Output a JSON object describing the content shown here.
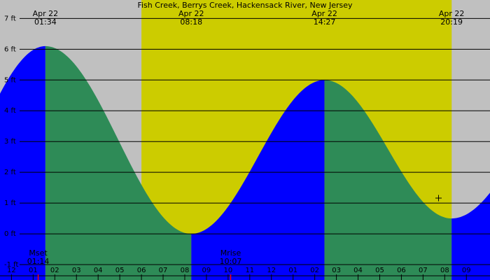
{
  "chart_data": {
    "type": "area",
    "title": "Fish Creek, Berrys Creek, Hackensack River, New Jersey",
    "y_unit": "ft",
    "ylim": [
      -1.5,
      7.6
    ],
    "y_ticks": [
      7,
      6,
      5,
      4,
      3,
      2,
      1,
      0,
      -1
    ],
    "y_tick_labels": [
      "7 ft",
      "6 ft",
      "5 ft",
      "4 ft",
      "3 ft",
      "2 ft",
      "1 ft",
      "0 ft",
      "-1 ft"
    ],
    "grid": true,
    "x_range_hours": [
      -0.53,
      22.09
    ],
    "x_tick_labels": [
      "11",
      "12",
      "01",
      "02",
      "03",
      "04",
      "05",
      "06",
      "07",
      "08",
      "09",
      "10",
      "11",
      "12",
      "01",
      "02",
      "03",
      "04",
      "05",
      "06",
      "07",
      "08",
      "09"
    ],
    "day_period": {
      "start_hour": 6.0,
      "end_hour": 20.32
    },
    "colors": {
      "night_background": "#c0c0c0",
      "day_background": "#cccc00",
      "rising_tide": "#0000ff",
      "falling_tide": "#2e8b57",
      "grid_line": "#000000"
    },
    "extremes": [
      {
        "date": "Apr 22",
        "time": "01:34",
        "hour": 1.567,
        "height_ft": 6.1,
        "type": "high"
      },
      {
        "date": "Apr 22",
        "time": "08:18",
        "hour": 8.3,
        "height_ft": 0.0,
        "type": "low"
      },
      {
        "date": "Apr 22",
        "time": "14:27",
        "hour": 14.45,
        "height_ft": 5.0,
        "type": "high"
      },
      {
        "date": "Apr 22",
        "time": "20:19",
        "hour": 20.317,
        "height_ft": 0.5,
        "type": "low"
      }
    ],
    "moon_events": [
      {
        "label": "Mset",
        "time": "01:14",
        "hour": 1.233
      },
      {
        "label": "Mrise",
        "time": "10:07",
        "hour": 10.117
      }
    ]
  }
}
